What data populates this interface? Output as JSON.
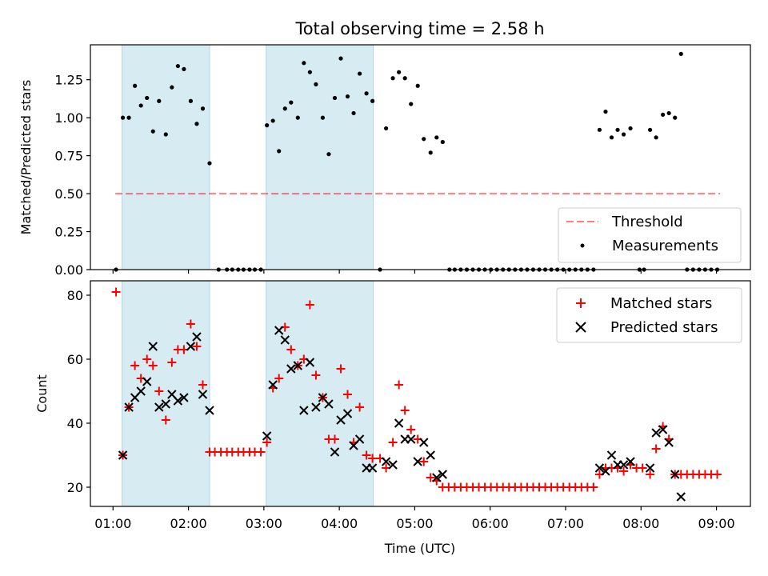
{
  "chart_data": {
    "title": "Total observing time = 2.58 h",
    "xlabel": "Time (UTC)",
    "x_ticks": [
      "01:00",
      "02:00",
      "03:00",
      "04:00",
      "05:00",
      "06:00",
      "07:00",
      "08:00",
      "09:00"
    ],
    "x_tick_hours": [
      1,
      2,
      3,
      4,
      5,
      6,
      7,
      8,
      9
    ],
    "x_range_hours": [
      0.7,
      9.45
    ],
    "shaded_intervals_hours": [
      [
        1.12,
        2.28
      ],
      [
        3.03,
        4.45
      ]
    ],
    "shade_color": "#add8e6",
    "top": {
      "type": "scatter",
      "ylabel": "Matched/Predicted stars",
      "ylim": [
        0,
        1.48
      ],
      "y_ticks": [
        "0.00",
        "0.25",
        "0.50",
        "0.75",
        "1.00",
        "1.25"
      ],
      "y_tick_values": [
        0,
        0.25,
        0.5,
        0.75,
        1.0,
        1.25
      ],
      "threshold": {
        "name": "Threshold",
        "value": 0.5,
        "x_range_hours": [
          1.03,
          9.05
        ],
        "color": "#ff0000",
        "alpha": 0.5
      },
      "legend_position": "lower-right",
      "series": [
        {
          "name": "Measurements",
          "color": "#000000",
          "points": [
            [
              1.04,
              0.0
            ],
            [
              1.13,
              1.0
            ],
            [
              1.21,
              1.0
            ],
            [
              1.29,
              1.21
            ],
            [
              1.37,
              1.08
            ],
            [
              1.45,
              1.13
            ],
            [
              1.53,
              0.91
            ],
            [
              1.61,
              1.11
            ],
            [
              1.7,
              0.89
            ],
            [
              1.78,
              1.2
            ],
            [
              1.86,
              1.34
            ],
            [
              1.94,
              1.32
            ],
            [
              2.03,
              1.11
            ],
            [
              2.11,
              0.96
            ],
            [
              2.19,
              1.06
            ],
            [
              2.28,
              0.7
            ],
            [
              2.4,
              0.0
            ],
            [
              2.51,
              0.0
            ],
            [
              2.58,
              0.0
            ],
            [
              2.66,
              0.0
            ],
            [
              2.73,
              0.0
            ],
            [
              2.81,
              0.0
            ],
            [
              2.88,
              0.0
            ],
            [
              2.96,
              0.0
            ],
            [
              3.04,
              0.95
            ],
            [
              3.12,
              0.98
            ],
            [
              3.2,
              0.78
            ],
            [
              3.28,
              1.06
            ],
            [
              3.36,
              1.1
            ],
            [
              3.45,
              1.0
            ],
            [
              3.53,
              1.36
            ],
            [
              3.61,
              1.3
            ],
            [
              3.69,
              1.22
            ],
            [
              3.78,
              1.0
            ],
            [
              3.86,
              0.76
            ],
            [
              3.94,
              1.13
            ],
            [
              4.02,
              1.39
            ],
            [
              4.11,
              1.14
            ],
            [
              4.19,
              1.03
            ],
            [
              4.27,
              1.29
            ],
            [
              4.36,
              1.16
            ],
            [
              4.44,
              1.11
            ],
            [
              4.54,
              0.0
            ],
            [
              4.62,
              0.93
            ],
            [
              4.71,
              1.26
            ],
            [
              4.79,
              1.3
            ],
            [
              4.87,
              1.26
            ],
            [
              4.95,
              1.09
            ],
            [
              5.04,
              1.21
            ],
            [
              5.12,
              0.86
            ],
            [
              5.21,
              0.77
            ],
            [
              5.29,
              0.87
            ],
            [
              5.37,
              0.84
            ],
            [
              5.46,
              0.0
            ],
            [
              5.53,
              0.0
            ],
            [
              5.61,
              0.0
            ],
            [
              5.69,
              0.0
            ],
            [
              5.77,
              0.0
            ],
            [
              5.85,
              0.0
            ],
            [
              5.93,
              0.0
            ],
            [
              6.01,
              0.0
            ],
            [
              6.09,
              0.0
            ],
            [
              6.17,
              0.0
            ],
            [
              6.25,
              0.0
            ],
            [
              6.33,
              0.0
            ],
            [
              6.41,
              0.0
            ],
            [
              6.49,
              0.0
            ],
            [
              6.57,
              0.0
            ],
            [
              6.65,
              0.0
            ],
            [
              6.73,
              0.0
            ],
            [
              6.81,
              0.0
            ],
            [
              6.89,
              0.0
            ],
            [
              6.97,
              0.0
            ],
            [
              7.05,
              0.0
            ],
            [
              7.13,
              0.0
            ],
            [
              7.21,
              0.0
            ],
            [
              7.29,
              0.0
            ],
            [
              7.37,
              0.0
            ],
            [
              7.45,
              0.92
            ],
            [
              7.53,
              1.04
            ],
            [
              7.61,
              0.87
            ],
            [
              7.69,
              0.92
            ],
            [
              7.77,
              0.89
            ],
            [
              7.86,
              0.93
            ],
            [
              7.98,
              0.0
            ],
            [
              8.04,
              0.0
            ],
            [
              8.12,
              0.92
            ],
            [
              8.2,
              0.87
            ],
            [
              8.29,
              1.02
            ],
            [
              8.37,
              1.03
            ],
            [
              8.45,
              1.0
            ],
            [
              8.53,
              1.42
            ],
            [
              8.61,
              0.0
            ],
            [
              8.69,
              0.0
            ],
            [
              8.77,
              0.0
            ],
            [
              8.85,
              0.0
            ],
            [
              8.93,
              0.0
            ],
            [
              9.01,
              0.0
            ]
          ]
        }
      ]
    },
    "bottom": {
      "type": "scatter",
      "ylabel": "Count",
      "ylim": [
        14,
        84.5
      ],
      "y_ticks": [
        "20",
        "40",
        "60",
        "80"
      ],
      "y_tick_values": [
        20,
        40,
        60,
        80
      ],
      "legend_position": "top-right",
      "series": [
        {
          "name": "Matched stars",
          "marker": "+",
          "color": "#ff0000",
          "points": [
            [
              1.04,
              81
            ],
            [
              1.13,
              30
            ],
            [
              1.21,
              45
            ],
            [
              1.29,
              58
            ],
            [
              1.37,
              54
            ],
            [
              1.45,
              60
            ],
            [
              1.53,
              58
            ],
            [
              1.61,
              50
            ],
            [
              1.7,
              41
            ],
            [
              1.78,
              59
            ],
            [
              1.86,
              63
            ],
            [
              1.94,
              63
            ],
            [
              2.03,
              71
            ],
            [
              2.11,
              64
            ],
            [
              2.19,
              52
            ],
            [
              2.28,
              31
            ],
            [
              2.35,
              31
            ],
            [
              2.43,
              31
            ],
            [
              2.51,
              31
            ],
            [
              2.58,
              31
            ],
            [
              2.66,
              31
            ],
            [
              2.73,
              31
            ],
            [
              2.81,
              31
            ],
            [
              2.88,
              31
            ],
            [
              2.96,
              31
            ],
            [
              3.04,
              34
            ],
            [
              3.12,
              51
            ],
            [
              3.2,
              54
            ],
            [
              3.28,
              70
            ],
            [
              3.36,
              63
            ],
            [
              3.45,
              58
            ],
            [
              3.53,
              60
            ],
            [
              3.61,
              77
            ],
            [
              3.69,
              55
            ],
            [
              3.78,
              48
            ],
            [
              3.86,
              35
            ],
            [
              3.94,
              35
            ],
            [
              4.02,
              57
            ],
            [
              4.11,
              49
            ],
            [
              4.19,
              34
            ],
            [
              4.27,
              45
            ],
            [
              4.36,
              30
            ],
            [
              4.44,
              29
            ],
            [
              4.54,
              29
            ],
            [
              4.62,
              26
            ],
            [
              4.71,
              34
            ],
            [
              4.79,
              52
            ],
            [
              4.87,
              44
            ],
            [
              4.95,
              38
            ],
            [
              5.04,
              35
            ],
            [
              5.12,
              28
            ],
            [
              5.21,
              23
            ],
            [
              5.29,
              22
            ],
            [
              5.37,
              20
            ],
            [
              5.45,
              20
            ],
            [
              5.53,
              20
            ],
            [
              5.61,
              20
            ],
            [
              5.69,
              20
            ],
            [
              5.77,
              20
            ],
            [
              5.85,
              20
            ],
            [
              5.93,
              20
            ],
            [
              6.01,
              20
            ],
            [
              6.09,
              20
            ],
            [
              6.17,
              20
            ],
            [
              6.25,
              20
            ],
            [
              6.33,
              20
            ],
            [
              6.41,
              20
            ],
            [
              6.49,
              20
            ],
            [
              6.57,
              20
            ],
            [
              6.65,
              20
            ],
            [
              6.73,
              20
            ],
            [
              6.81,
              20
            ],
            [
              6.89,
              20
            ],
            [
              6.97,
              20
            ],
            [
              7.05,
              20
            ],
            [
              7.13,
              20
            ],
            [
              7.21,
              20
            ],
            [
              7.29,
              20
            ],
            [
              7.37,
              20
            ],
            [
              7.45,
              24
            ],
            [
              7.53,
              26
            ],
            [
              7.61,
              26
            ],
            [
              7.69,
              26
            ],
            [
              7.77,
              25
            ],
            [
              7.86,
              27
            ],
            [
              7.94,
              26
            ],
            [
              8.02,
              26
            ],
            [
              8.12,
              24
            ],
            [
              8.2,
              32
            ],
            [
              8.29,
              39
            ],
            [
              8.37,
              35
            ],
            [
              8.45,
              24
            ],
            [
              8.53,
              24
            ],
            [
              8.61,
              24
            ],
            [
              8.69,
              24
            ],
            [
              8.77,
              24
            ],
            [
              8.85,
              24
            ],
            [
              8.93,
              24
            ],
            [
              9.01,
              24
            ]
          ]
        },
        {
          "name": "Predicted stars",
          "marker": "x",
          "color": "#000000",
          "points": [
            [
              1.13,
              30
            ],
            [
              1.21,
              45
            ],
            [
              1.29,
              48
            ],
            [
              1.37,
              50
            ],
            [
              1.45,
              53
            ],
            [
              1.53,
              64
            ],
            [
              1.61,
              45
            ],
            [
              1.7,
              46
            ],
            [
              1.78,
              49
            ],
            [
              1.86,
              47
            ],
            [
              1.94,
              48
            ],
            [
              2.03,
              64
            ],
            [
              2.11,
              67
            ],
            [
              2.19,
              49
            ],
            [
              2.28,
              44
            ],
            [
              3.04,
              36
            ],
            [
              3.12,
              52
            ],
            [
              3.2,
              69
            ],
            [
              3.28,
              66
            ],
            [
              3.36,
              57
            ],
            [
              3.45,
              58
            ],
            [
              3.53,
              44
            ],
            [
              3.61,
              59
            ],
            [
              3.69,
              45
            ],
            [
              3.78,
              48
            ],
            [
              3.86,
              46
            ],
            [
              3.94,
              31
            ],
            [
              4.02,
              41
            ],
            [
              4.11,
              43
            ],
            [
              4.19,
              33
            ],
            [
              4.27,
              35
            ],
            [
              4.36,
              26
            ],
            [
              4.44,
              26
            ],
            [
              4.62,
              28
            ],
            [
              4.71,
              27
            ],
            [
              4.79,
              40
            ],
            [
              4.87,
              35
            ],
            [
              4.95,
              35
            ],
            [
              5.04,
              28
            ],
            [
              5.12,
              34
            ],
            [
              5.21,
              30
            ],
            [
              5.29,
              23
            ],
            [
              5.37,
              24
            ],
            [
              7.45,
              26
            ],
            [
              7.53,
              25
            ],
            [
              7.61,
              30
            ],
            [
              7.69,
              27
            ],
            [
              7.77,
              27
            ],
            [
              7.86,
              28
            ],
            [
              8.12,
              26
            ],
            [
              8.2,
              37
            ],
            [
              8.29,
              38
            ],
            [
              8.37,
              34
            ],
            [
              8.45,
              24
            ],
            [
              8.53,
              17
            ]
          ]
        }
      ]
    }
  }
}
